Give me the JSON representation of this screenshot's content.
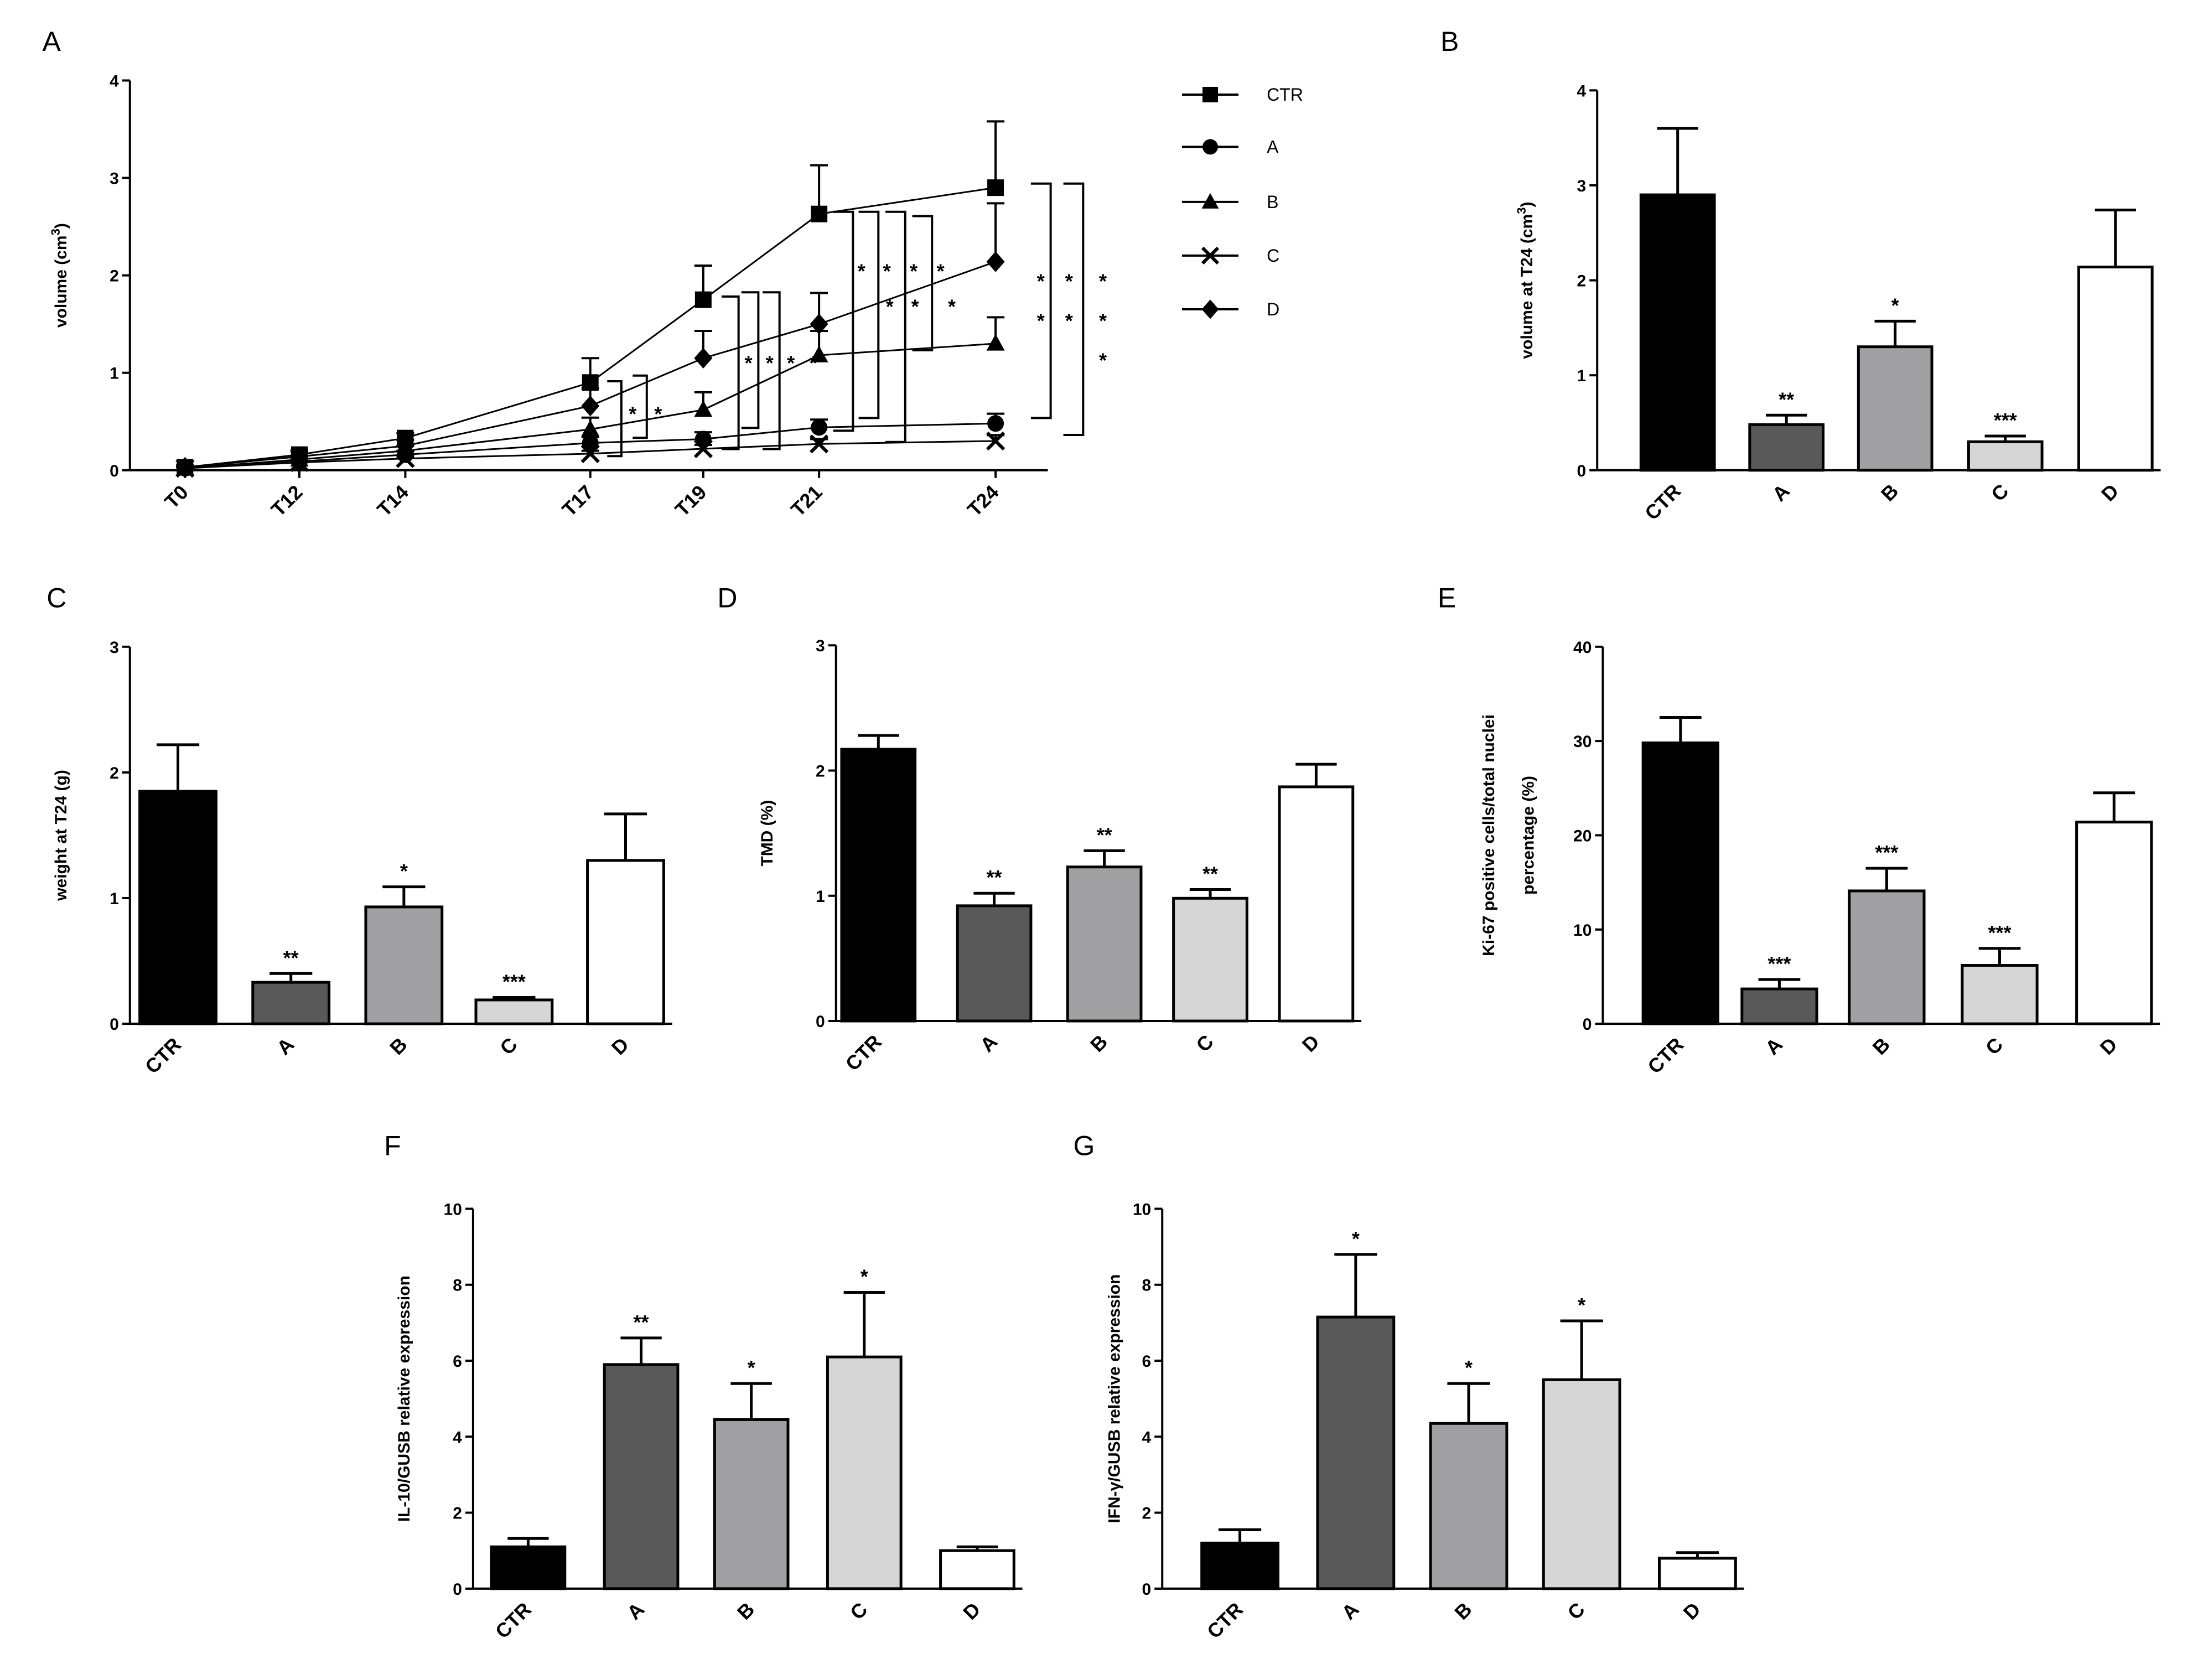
{
  "figure": {
    "background": "#ffffff",
    "ink": "#000000"
  },
  "chart_data": [
    {
      "id": "A",
      "panel_label": "A",
      "type": "line",
      "ylabel": "volume (cm",
      "ylabel_sup": "3",
      "ylabel_close": ")",
      "ylim": [
        0,
        4
      ],
      "yticks": [
        "0",
        "1",
        "2",
        "3",
        "4"
      ],
      "x_labels": [
        "T0",
        "T12",
        "T14",
        "T17",
        "T19",
        "T21",
        "T24"
      ],
      "x_days": [
        0,
        12,
        14,
        17,
        19,
        21,
        24
      ],
      "series": [
        {
          "name": "CTR",
          "marker": "square",
          "values": [
            0.03,
            0.16,
            0.33,
            0.9,
            1.75,
            2.63,
            2.9
          ],
          "errors": [
            0.02,
            0.05,
            0.05,
            0.25,
            0.35,
            0.5,
            0.68
          ]
        },
        {
          "name": "A",
          "marker": "circle",
          "values": [
            0.02,
            0.09,
            0.16,
            0.28,
            0.32,
            0.44,
            0.48
          ],
          "errors": [
            0.01,
            0.03,
            0.04,
            0.06,
            0.07,
            0.08,
            0.1
          ]
        },
        {
          "name": "B",
          "marker": "triangle",
          "values": [
            0.02,
            0.11,
            0.2,
            0.42,
            0.62,
            1.18,
            1.3
          ],
          "errors": [
            0.01,
            0.03,
            0.05,
            0.12,
            0.18,
            0.25,
            0.27
          ]
        },
        {
          "name": "C",
          "marker": "x",
          "values": [
            0.02,
            0.08,
            0.12,
            0.17,
            0.22,
            0.27,
            0.3
          ],
          "errors": [
            0.01,
            0.02,
            0.03,
            0.03,
            0.04,
            0.05,
            0.06
          ]
        },
        {
          "name": "D",
          "marker": "diamond",
          "values": [
            0.03,
            0.14,
            0.25,
            0.66,
            1.15,
            1.5,
            2.14
          ],
          "errors": [
            0.02,
            0.05,
            0.06,
            0.18,
            0.28,
            0.32,
            0.6
          ]
        }
      ],
      "annotations": {
        "t17": [
          "*",
          "*"
        ],
        "t19": [
          "*",
          "*",
          "*",
          "*"
        ],
        "t21_upper": [
          "*",
          "*",
          "*",
          "*"
        ],
        "t21_lower": [
          "*",
          "*",
          "*"
        ],
        "t24_row1": [
          "*",
          "*",
          "*"
        ],
        "t24_row2": [
          "*",
          "*",
          "*"
        ],
        "t24_row3": [
          "*"
        ]
      }
    },
    {
      "id": "B",
      "panel_label": "B",
      "type": "bar",
      "ylabel": "volume at T24 (cm",
      "ylabel_sup": "3",
      "ylabel_close": ")",
      "ylim": [
        0,
        4
      ],
      "yticks": [
        "0",
        "1",
        "2",
        "3",
        "4"
      ],
      "categories": [
        "CTR",
        "A",
        "B",
        "C",
        "D"
      ],
      "values": [
        2.9,
        0.48,
        1.3,
        0.3,
        2.14
      ],
      "errors": [
        0.7,
        0.1,
        0.27,
        0.06,
        0.6
      ],
      "significance": [
        "",
        "**",
        "*",
        "***",
        ""
      ]
    },
    {
      "id": "C",
      "panel_label": "C",
      "type": "bar",
      "ylabel": "weight at T24 (g)",
      "ylim": [
        0,
        3
      ],
      "yticks": [
        "0",
        "1",
        "2",
        "3"
      ],
      "categories": [
        "CTR",
        "A",
        "B",
        "C",
        "D"
      ],
      "values": [
        1.85,
        0.33,
        0.93,
        0.19,
        1.3
      ],
      "errors": [
        0.37,
        0.07,
        0.16,
        0.02,
        0.37
      ],
      "significance": [
        "",
        "**",
        "*",
        "***",
        ""
      ]
    },
    {
      "id": "D",
      "panel_label": "D",
      "type": "bar",
      "ylabel": "TMD (%)",
      "ylim": [
        0,
        3
      ],
      "yticks": [
        "0",
        "1",
        "2",
        "3"
      ],
      "categories": [
        "CTR",
        "A",
        "B",
        "C",
        "D"
      ],
      "values": [
        2.17,
        0.92,
        1.23,
        0.98,
        1.87
      ],
      "errors": [
        0.11,
        0.1,
        0.13,
        0.07,
        0.18
      ],
      "significance": [
        "",
        "**",
        "**",
        "**",
        ""
      ]
    },
    {
      "id": "E",
      "panel_label": "E",
      "type": "bar",
      "ylabel": "Ki-67 positive cells/total nuclei",
      "ylabel2": "percentage (%)",
      "ylim": [
        0,
        40
      ],
      "yticks": [
        "0",
        "10",
        "20",
        "30",
        "40"
      ],
      "categories": [
        "CTR",
        "A",
        "B",
        "C",
        "D"
      ],
      "values": [
        29.8,
        3.7,
        14.1,
        6.2,
        21.4
      ],
      "errors": [
        2.7,
        1.0,
        2.4,
        1.8,
        3.1
      ],
      "significance": [
        "",
        "***",
        "***",
        "***",
        ""
      ]
    },
    {
      "id": "F",
      "panel_label": "F",
      "type": "bar",
      "ylabel": "IL-10/GUSB relative expression",
      "ylim": [
        0,
        10
      ],
      "yticks": [
        "0",
        "2",
        "4",
        "6",
        "8",
        "10"
      ],
      "categories": [
        "CTR",
        "A",
        "B",
        "C",
        "D"
      ],
      "values": [
        1.1,
        5.9,
        4.45,
        6.1,
        1.0
      ],
      "errors": [
        0.22,
        0.7,
        0.95,
        1.7,
        0.1
      ],
      "significance": [
        "",
        "**",
        "*",
        "*",
        ""
      ]
    },
    {
      "id": "G",
      "panel_label": "G",
      "type": "bar",
      "ylabel": "IFN-γ/GUSB relative expression",
      "ylim": [
        0,
        10
      ],
      "yticks": [
        "0",
        "2",
        "4",
        "6",
        "8",
        "10"
      ],
      "categories": [
        "CTR",
        "A",
        "B",
        "C",
        "D"
      ],
      "values": [
        1.2,
        7.15,
        4.35,
        5.5,
        0.8
      ],
      "errors": [
        0.35,
        1.65,
        1.05,
        1.55,
        0.15
      ],
      "significance": [
        "",
        "*",
        "*",
        "*",
        ""
      ]
    }
  ]
}
